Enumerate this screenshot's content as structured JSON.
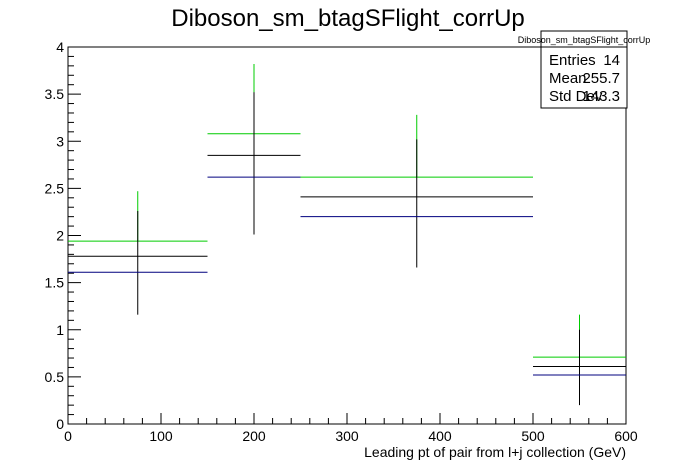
{
  "chart_data": {
    "type": "histogram",
    "title": "Diboson_sm_btagSFlight_corrUp",
    "xlabel": "Leading pt of pair from l+j collection (GeV)",
    "ylabel": "",
    "xlim": [
      0,
      600
    ],
    "ylim": [
      0,
      4
    ],
    "x_ticks": [
      "0",
      "100",
      "200",
      "300",
      "400",
      "500",
      "600"
    ],
    "y_ticks": [
      "0",
      "0.5",
      "1",
      "1.5",
      "2",
      "2.5",
      "3",
      "3.5",
      "4"
    ],
    "bins": [
      {
        "low": 0,
        "high": 150,
        "center": 75
      },
      {
        "low": 150,
        "high": 250,
        "center": 200
      },
      {
        "low": 250,
        "high": 500,
        "center": 375
      },
      {
        "low": 500,
        "high": 600,
        "center": 550
      }
    ],
    "series": [
      {
        "color": "#00cc00",
        "values": [
          1.94,
          3.08,
          2.62,
          0.71
        ],
        "err_high": [
          2.47,
          3.82,
          3.28,
          1.16
        ]
      },
      {
        "color": "#000000",
        "values": [
          1.78,
          2.85,
          2.41,
          0.61
        ],
        "err_low": [
          1.16,
          2.01,
          1.66,
          0.2
        ],
        "err_high": [
          2.26,
          3.52,
          3.02,
          1.0
        ]
      },
      {
        "color": "#00007f",
        "values": [
          1.61,
          2.62,
          2.2,
          0.52
        ]
      }
    ],
    "stats": {
      "name": "Diboson_sm_btagSFlight_corrUp",
      "rows": [
        {
          "label": "Entries",
          "value": "14"
        },
        {
          "label": "Mean",
          "value": "255.7"
        },
        {
          "label": "Std Dev",
          "value": "143.3"
        }
      ]
    }
  }
}
